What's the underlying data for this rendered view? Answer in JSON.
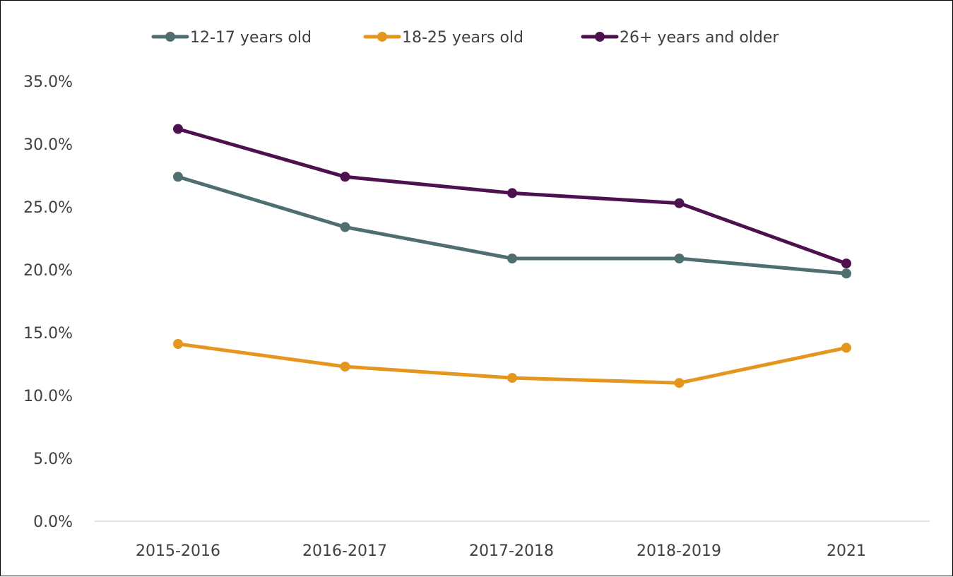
{
  "chart_data": {
    "type": "line",
    "title": "",
    "xlabel": "",
    "ylabel": "",
    "categories": [
      "2015-2016",
      "2016-2017",
      "2017-2018",
      "2018-2019",
      "2021"
    ],
    "ylim": [
      0,
      35
    ],
    "yticks": [
      "0.0%",
      "5.0%",
      "10.0%",
      "15.0%",
      "20.0%",
      "25.0%",
      "30.0%",
      "35.0%"
    ],
    "grid": false,
    "legend_position": "top",
    "series": [
      {
        "name": "12-17 years old",
        "color": "#4f6e70",
        "values": [
          27.4,
          23.4,
          20.9,
          20.9,
          19.7
        ]
      },
      {
        "name": "18-25 years old",
        "color": "#e5961f",
        "values": [
          14.1,
          12.3,
          11.4,
          11.0,
          13.8
        ]
      },
      {
        "name": "26+ years and older",
        "color": "#4d1150",
        "values": [
          31.2,
          27.4,
          26.1,
          25.3,
          20.5
        ]
      }
    ]
  }
}
